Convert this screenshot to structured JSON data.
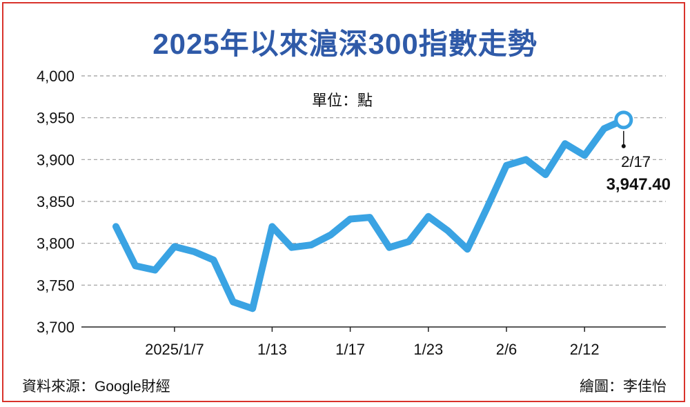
{
  "title": "2025年以來滬深300指數走勢",
  "unit": "單位：點",
  "source": "資料來源：Google財經",
  "credit": "繪圖：李佳怡",
  "colors": {
    "title": "#2f5aa8",
    "line": "#3aa3e3",
    "frame": "#d8322b",
    "grid": "#9a9a9a"
  },
  "chart_data": {
    "type": "line",
    "title": "2025年以來滬深300指數走勢",
    "ylim": [
      3700,
      4000
    ],
    "yticks": [
      3700,
      3750,
      3800,
      3850,
      3900,
      3950,
      4000
    ],
    "ytick_labels": [
      "3,700",
      "3,750",
      "3,800",
      "3,850",
      "3,900",
      "3,950",
      "4,000"
    ],
    "xtick_labels": [
      "2025/1/7",
      "1/13",
      "1/17",
      "1/23",
      "2/6",
      "2/12"
    ],
    "xtick_indices": [
      3,
      8,
      12,
      16,
      20,
      24
    ],
    "grid": true,
    "series": [
      {
        "values": [
          3820,
          3773,
          3768,
          3796,
          3790,
          3780,
          3730,
          3722,
          3820,
          3795,
          3798,
          3810,
          3829,
          3831,
          3795,
          3802,
          3832,
          3815,
          3793,
          3842,
          3893,
          3900,
          3882,
          3919,
          3905,
          3937,
          3947.4
        ]
      }
    ],
    "annotation": {
      "index": 26,
      "date": "2/17",
      "value": "3,947.40"
    }
  }
}
